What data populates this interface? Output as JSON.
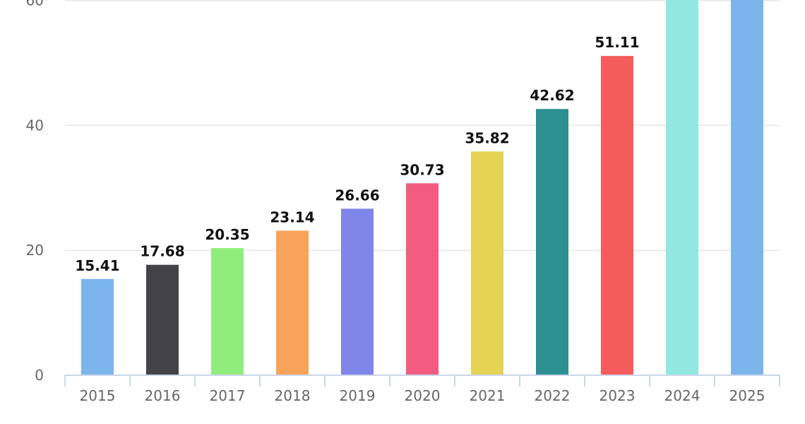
{
  "chart_data": {
    "type": "bar",
    "categories": [
      "2015",
      "2016",
      "2017",
      "2018",
      "2019",
      "2020",
      "2021",
      "2022",
      "2023",
      "2024",
      "2025"
    ],
    "values": [
      15.41,
      17.68,
      20.35,
      23.14,
      26.66,
      30.73,
      35.82,
      42.62,
      51.11,
      null,
      null
    ],
    "data_labels": [
      "15.41",
      "17.68",
      "20.35",
      "23.14",
      "26.66",
      "30.73",
      "35.82",
      "42.62",
      "51.11",
      "",
      ""
    ],
    "clipped_top": [
      false,
      false,
      false,
      false,
      false,
      false,
      false,
      false,
      false,
      true,
      true
    ],
    "colors": [
      "#7cb5ec",
      "#434348",
      "#90ed7d",
      "#f7a35c",
      "#8085e9",
      "#f15c80",
      "#e4d354",
      "#2b908f",
      "#f45b5b",
      "#91e8e1",
      "#7cb5ec"
    ],
    "yticks": [
      "0",
      "20",
      "40",
      "60"
    ],
    "ylim": [
      0,
      60
    ],
    "grid": true,
    "title": "",
    "xlabel": "",
    "ylabel": ""
  }
}
